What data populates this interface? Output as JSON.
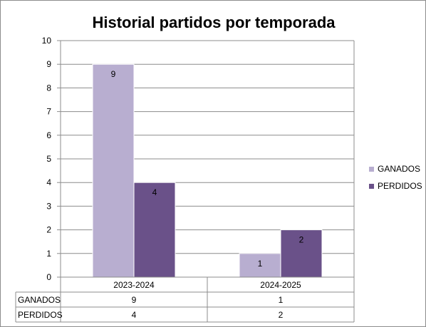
{
  "chart_data": {
    "type": "bar",
    "title": "Historial partidos por temporada",
    "categories": [
      "2023-2024",
      "2024-2025"
    ],
    "series": [
      {
        "name": "GANADOS",
        "values": [
          9,
          1
        ],
        "color": "#b8aed0"
      },
      {
        "name": "PERDIDOS",
        "values": [
          4,
          2
        ],
        "color": "#6a5189"
      }
    ],
    "ylim": [
      0,
      10
    ],
    "yticks": [
      0,
      1,
      2,
      3,
      4,
      5,
      6,
      7,
      8,
      9,
      10
    ],
    "grid": true,
    "legend": "right",
    "data_table": true
  }
}
